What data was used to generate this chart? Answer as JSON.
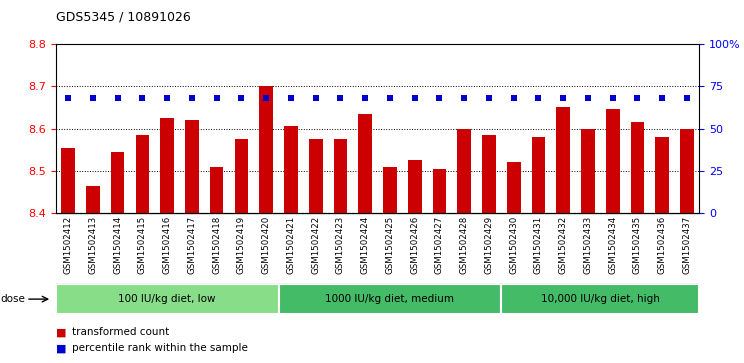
{
  "title": "GDS5345 / 10891026",
  "samples": [
    "GSM1502412",
    "GSM1502413",
    "GSM1502414",
    "GSM1502415",
    "GSM1502416",
    "GSM1502417",
    "GSM1502418",
    "GSM1502419",
    "GSM1502420",
    "GSM1502421",
    "GSM1502422",
    "GSM1502423",
    "GSM1502424",
    "GSM1502425",
    "GSM1502426",
    "GSM1502427",
    "GSM1502428",
    "GSM1502429",
    "GSM1502430",
    "GSM1502431",
    "GSM1502432",
    "GSM1502433",
    "GSM1502434",
    "GSM1502435",
    "GSM1502436",
    "GSM1502437"
  ],
  "bar_values": [
    8.555,
    8.465,
    8.545,
    8.585,
    8.625,
    8.62,
    8.51,
    8.575,
    8.7,
    8.605,
    8.575,
    8.575,
    8.635,
    8.51,
    8.525,
    8.505,
    8.6,
    8.585,
    8.52,
    8.58,
    8.65,
    8.6,
    8.645,
    8.615,
    8.58,
    8.6
  ],
  "percentile_values": [
    68,
    68,
    68,
    68,
    68,
    68,
    68,
    68,
    68,
    68,
    68,
    68,
    68,
    68,
    68,
    68,
    68,
    68,
    68,
    68,
    68,
    68,
    68,
    68,
    68,
    68
  ],
  "bar_color": "#cc0000",
  "dot_color": "#0000cc",
  "ylim_left": [
    8.4,
    8.8
  ],
  "ylim_right": [
    0,
    100
  ],
  "yticks_left": [
    8.4,
    8.5,
    8.6,
    8.7,
    8.8
  ],
  "yticks_right": [
    0,
    25,
    50,
    75,
    100
  ],
  "ytick_labels_right": [
    "0",
    "25",
    "50",
    "75",
    "100%"
  ],
  "groups_info": [
    {
      "start": 0,
      "end": 8,
      "color": "#88dd88",
      "label": "100 IU/kg diet, low"
    },
    {
      "start": 9,
      "end": 17,
      "color": "#44bb66",
      "label": "1000 IU/kg diet, medium"
    },
    {
      "start": 18,
      "end": 25,
      "color": "#44bb66",
      "label": "10,000 IU/kg diet, high"
    }
  ],
  "dose_label": "dose",
  "legend_items": [
    {
      "label": "transformed count",
      "color": "#cc0000"
    },
    {
      "label": "percentile rank within the sample",
      "color": "#0000cc"
    }
  ]
}
